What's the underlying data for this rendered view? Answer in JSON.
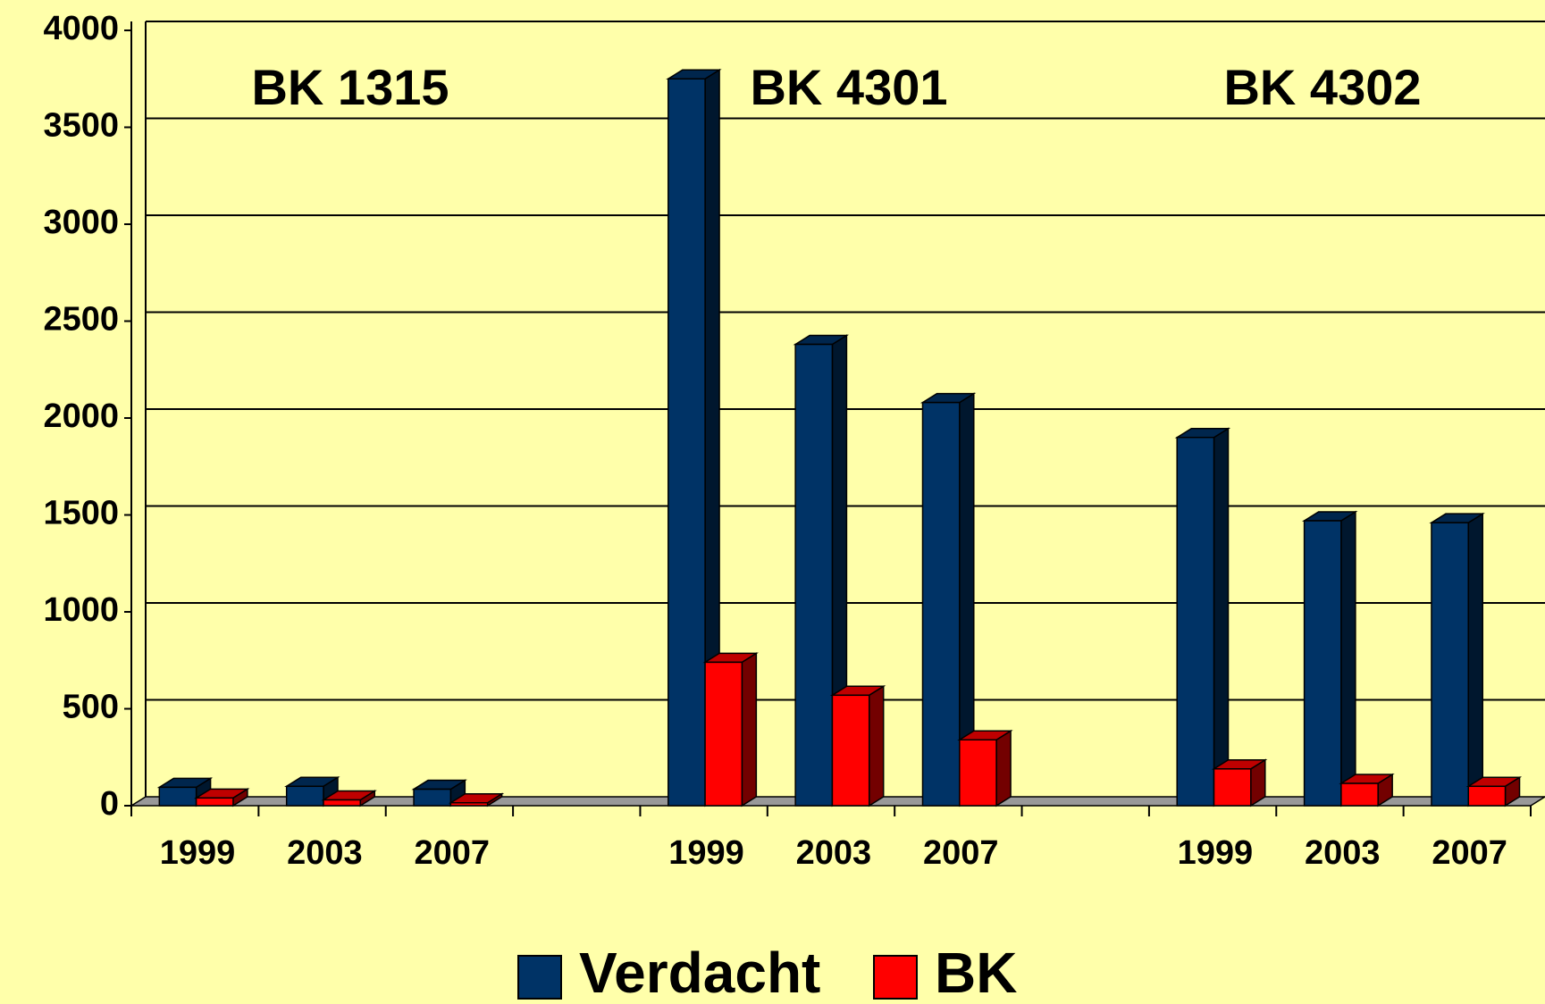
{
  "chart_data": {
    "type": "bar3d",
    "categories": [
      "1999",
      "2003",
      "2007",
      null,
      "1999",
      "2003",
      "2007",
      null,
      "1999",
      "2003",
      "2007"
    ],
    "series": [
      {
        "name": "Verdacht",
        "color": "#003366",
        "values": [
          95,
          100,
          85,
          null,
          3750,
          2380,
          2080,
          null,
          1900,
          1470,
          1460
        ]
      },
      {
        "name": "BK",
        "color": "#ff0000",
        "values": [
          40,
          30,
          15,
          null,
          740,
          570,
          340,
          null,
          190,
          115,
          100
        ]
      }
    ],
    "annotations": [
      "BK 1315",
      "BK 4301",
      "BK 4302"
    ],
    "ylim": [
      0,
      4000
    ],
    "yticks": [
      0,
      500,
      1000,
      1500,
      2000,
      2500,
      3000,
      3500,
      4000
    ],
    "grid": true,
    "legend": "bottom"
  }
}
